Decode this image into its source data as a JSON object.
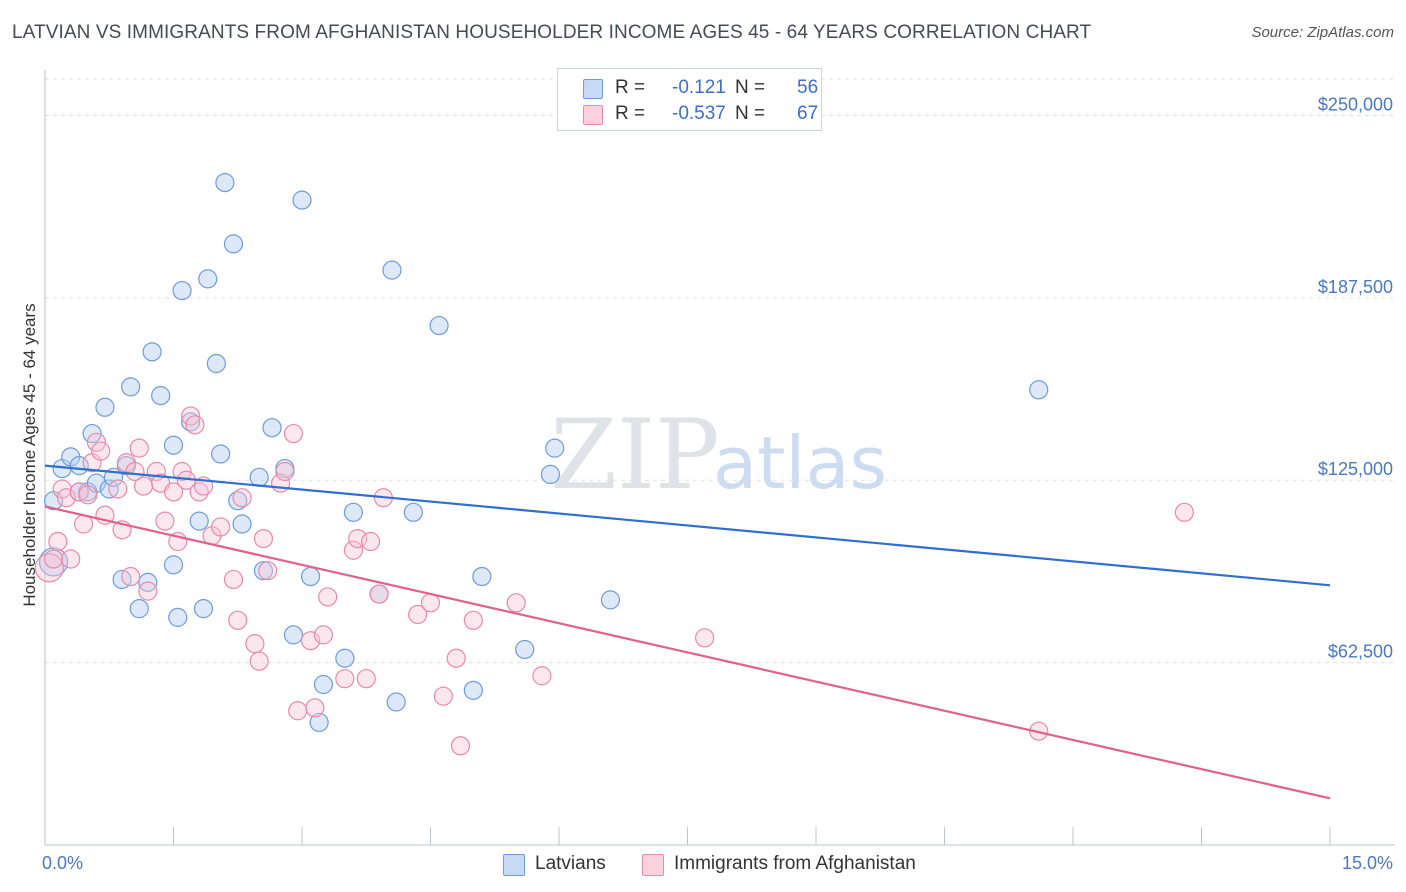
{
  "header": {
    "title": "LATVIAN VS IMMIGRANTS FROM AFGHANISTAN HOUSEHOLDER INCOME AGES 45 - 64 YEARS CORRELATION CHART",
    "source": "Source: ZipAtlas.com"
  },
  "watermark": {
    "zip": "ZIP",
    "atlas": "atlas"
  },
  "legend": {
    "r_label": "R =",
    "n_label": "N =",
    "series": [
      {
        "name": "Latvians",
        "r": "-0.121",
        "n": "56",
        "color": "#a9c6ef",
        "line_color": "#2f6fcf"
      },
      {
        "name": "Immigrants from Afghanistan",
        "r": "-0.537",
        "n": "67",
        "color": "#f6b8cc",
        "line_color": "#e0628c"
      }
    ]
  },
  "chart_data": {
    "type": "scatter",
    "title": "LATVIAN VS IMMIGRANTS FROM AFGHANISTAN HOUSEHOLDER INCOME AGES 45 - 64 YEARS CORRELATION CHART",
    "xlabel": "",
    "ylabel": "Householder Income Ages 45 - 64 years",
    "xlim": [
      0,
      15
    ],
    "ylim": [
      0,
      262500
    ],
    "x_tick_labels": [
      "0.0%",
      "15.0%"
    ],
    "y_ticks": [
      62500,
      125000,
      187500,
      250000
    ],
    "y_tick_labels": [
      "$62,500",
      "$125,000",
      "$187,500",
      "$250,000"
    ],
    "grid": true,
    "series": [
      {
        "name": "Latvians",
        "trend": {
          "x": [
            0,
            15
          ],
          "y": [
            130000,
            89000
          ]
        },
        "points": [
          [
            0.1,
            118000
          ],
          [
            0.1,
            97000
          ],
          [
            0.2,
            129000
          ],
          [
            0.3,
            133000
          ],
          [
            0.4,
            130000
          ],
          [
            0.4,
            121000
          ],
          [
            0.5,
            121000
          ],
          [
            0.55,
            141000
          ],
          [
            0.6,
            124000
          ],
          [
            0.7,
            150000
          ],
          [
            0.75,
            122000
          ],
          [
            0.8,
            126000
          ],
          [
            0.9,
            91000
          ],
          [
            0.95,
            130000
          ],
          [
            1.0,
            157000
          ],
          [
            1.1,
            81000
          ],
          [
            1.2,
            90000
          ],
          [
            1.25,
            169000
          ],
          [
            1.35,
            154000
          ],
          [
            1.5,
            137000
          ],
          [
            1.5,
            96000
          ],
          [
            1.55,
            78000
          ],
          [
            1.6,
            190000
          ],
          [
            1.7,
            145000
          ],
          [
            1.8,
            111000
          ],
          [
            1.85,
            81000
          ],
          [
            1.9,
            194000
          ],
          [
            2.0,
            165000
          ],
          [
            2.05,
            134000
          ],
          [
            2.1,
            227000
          ],
          [
            2.2,
            206000
          ],
          [
            2.25,
            118000
          ],
          [
            2.3,
            110000
          ],
          [
            2.5,
            126000
          ],
          [
            2.55,
            94000
          ],
          [
            2.65,
            143000
          ],
          [
            2.8,
            129000
          ],
          [
            2.9,
            72000
          ],
          [
            3.0,
            221000
          ],
          [
            3.1,
            92000
          ],
          [
            3.2,
            42000
          ],
          [
            3.25,
            55000
          ],
          [
            3.5,
            64000
          ],
          [
            3.6,
            114000
          ],
          [
            3.9,
            86000
          ],
          [
            4.05,
            197000
          ],
          [
            4.1,
            49000
          ],
          [
            4.3,
            114000
          ],
          [
            4.6,
            178000
          ],
          [
            5.0,
            53000
          ],
          [
            5.1,
            92000
          ],
          [
            5.6,
            67000
          ],
          [
            5.9,
            127000
          ],
          [
            5.95,
            136000
          ],
          [
            6.6,
            84000
          ],
          [
            11.6,
            156000
          ]
        ]
      },
      {
        "name": "Immigrants from Afghanistan",
        "trend": {
          "x": [
            0,
            15
          ],
          "y": [
            116000,
            16000
          ]
        },
        "points": [
          [
            0.05,
            95000
          ],
          [
            0.1,
            98000
          ],
          [
            0.15,
            104000
          ],
          [
            0.2,
            122000
          ],
          [
            0.25,
            119000
          ],
          [
            0.3,
            98000
          ],
          [
            0.4,
            121000
          ],
          [
            0.45,
            110000
          ],
          [
            0.5,
            120000
          ],
          [
            0.55,
            131000
          ],
          [
            0.6,
            138000
          ],
          [
            0.65,
            135000
          ],
          [
            0.7,
            113000
          ],
          [
            0.85,
            122000
          ],
          [
            0.9,
            108000
          ],
          [
            0.95,
            131000
          ],
          [
            1.0,
            92000
          ],
          [
            1.05,
            128000
          ],
          [
            1.1,
            136000
          ],
          [
            1.15,
            123000
          ],
          [
            1.2,
            87000
          ],
          [
            1.3,
            128000
          ],
          [
            1.35,
            124000
          ],
          [
            1.4,
            111000
          ],
          [
            1.5,
            121000
          ],
          [
            1.55,
            104000
          ],
          [
            1.6,
            128000
          ],
          [
            1.65,
            125000
          ],
          [
            1.7,
            147000
          ],
          [
            1.75,
            144000
          ],
          [
            1.8,
            121000
          ],
          [
            1.85,
            123000
          ],
          [
            1.95,
            106000
          ],
          [
            2.05,
            109000
          ],
          [
            2.2,
            91000
          ],
          [
            2.25,
            77000
          ],
          [
            2.3,
            119000
          ],
          [
            2.45,
            69000
          ],
          [
            2.5,
            63000
          ],
          [
            2.55,
            105000
          ],
          [
            2.6,
            94000
          ],
          [
            2.75,
            124000
          ],
          [
            2.8,
            128000
          ],
          [
            2.9,
            141000
          ],
          [
            2.95,
            46000
          ],
          [
            3.1,
            70000
          ],
          [
            3.15,
            47000
          ],
          [
            3.25,
            72000
          ],
          [
            3.3,
            85000
          ],
          [
            3.5,
            57000
          ],
          [
            3.6,
            101000
          ],
          [
            3.65,
            105000
          ],
          [
            3.75,
            57000
          ],
          [
            3.8,
            104000
          ],
          [
            3.9,
            86000
          ],
          [
            3.95,
            119000
          ],
          [
            4.35,
            79000
          ],
          [
            4.5,
            83000
          ],
          [
            4.65,
            51000
          ],
          [
            4.8,
            64000
          ],
          [
            4.85,
            34000
          ],
          [
            5.0,
            77000
          ],
          [
            5.5,
            83000
          ],
          [
            5.8,
            58000
          ],
          [
            7.7,
            71000
          ],
          [
            11.6,
            39000
          ],
          [
            13.3,
            114000
          ]
        ]
      }
    ]
  }
}
